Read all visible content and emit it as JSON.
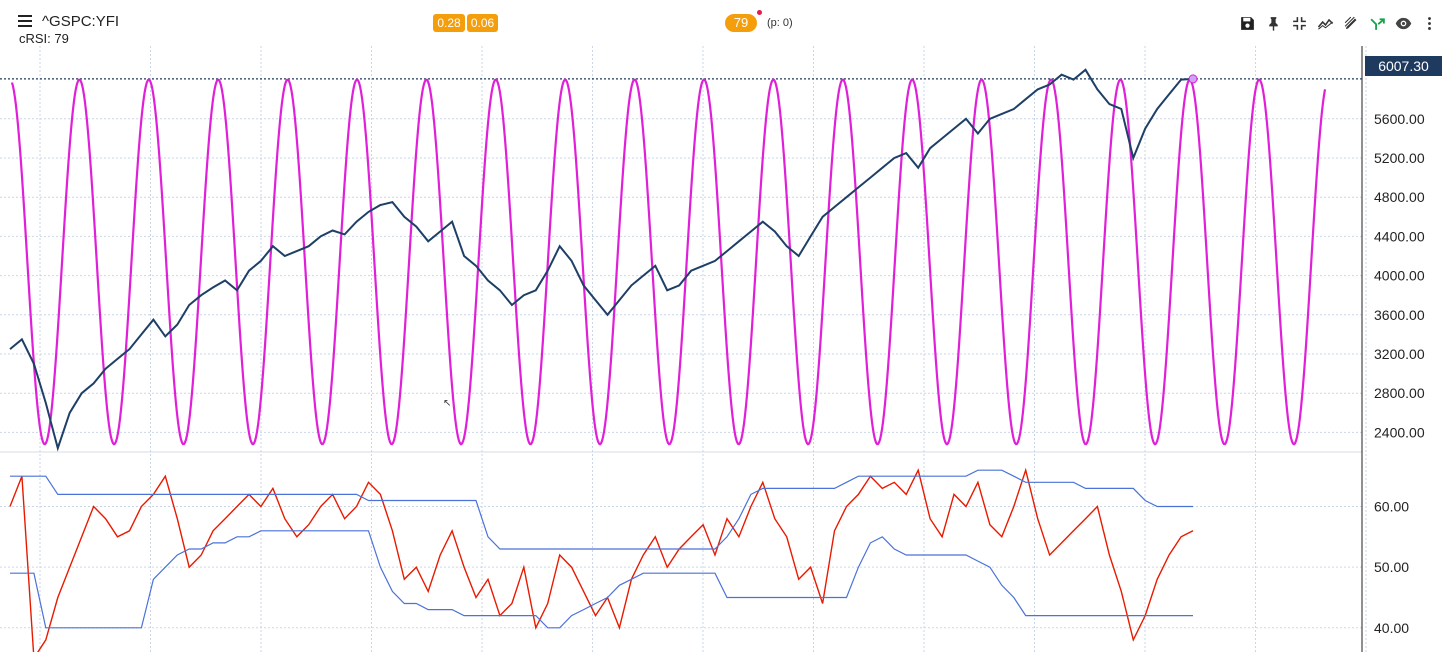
{
  "header": {
    "symbol": "^GSPC:YFI",
    "indicator_label": "cRSI: 79",
    "badge_a": "0.28",
    "badge_b": "0.06",
    "badge_c": "79",
    "p_label": "(p: 0)"
  },
  "toolbar": [
    "save-icon",
    "pin-icon",
    "compress-icon",
    "trend-icon",
    "draw-icon",
    "fork-icon",
    "eye-icon",
    "more-icon"
  ],
  "colors": {
    "price": "#1e3f66",
    "cycle": "#e020d8",
    "rsi": "#e81a00",
    "bands": "#4a72d8",
    "grid": "#c9d6e8",
    "price_tag": "#1e3a5f"
  },
  "chart_data": [
    {
      "type": "line",
      "panel": "price",
      "series": [
        {
          "values": [
            3250,
            3350,
            3100,
            2700,
            2240,
            2600,
            2800,
            2900,
            3050,
            3150,
            3250,
            3400,
            3550,
            3380,
            3500,
            3700,
            3800,
            3880,
            3950,
            3850,
            4050,
            4150,
            4300,
            4200,
            4250,
            4300,
            4400,
            4460,
            4420,
            4550,
            4650,
            4720,
            4750,
            4600,
            4500,
            4350,
            4450,
            4550,
            4200,
            4100,
            3950,
            3850,
            3700,
            3800,
            3850,
            4050,
            4300,
            4150,
            3900,
            3750,
            3600,
            3750,
            3900,
            4000,
            4100,
            3850,
            3900,
            4050,
            4100,
            4150,
            4250,
            4350,
            4450,
            4550,
            4450,
            4300,
            4200,
            4400,
            4600,
            4700,
            4800,
            4900,
            5000,
            5100,
            5200,
            5250,
            5100,
            5300,
            5400,
            5500,
            5600,
            5450,
            5600,
            5650,
            5700,
            5800,
            5900,
            5950,
            6050,
            6000,
            6100,
            5900,
            5750,
            5700,
            5200,
            5500,
            5700,
            5850,
            6000,
            6007.3
          ]
        }
      ],
      "last_value": "6007.30",
      "ylim": [
        2200,
        6200
      ],
      "y_ticks": [
        "5600.00",
        "5200.00",
        "4800.00",
        "4400.00",
        "4000.00",
        "3600.00",
        "3200.00",
        "2800.00",
        "2400.00"
      ]
    },
    {
      "type": "line",
      "panel": "cycle",
      "cycles": 19,
      "ylim": [
        2200,
        6200
      ]
    },
    {
      "type": "line",
      "panel": "rsi",
      "series": [
        {
          "values": [
            60,
            65,
            35,
            38,
            45,
            50,
            55,
            60,
            58,
            55,
            56,
            60,
            62,
            65,
            58,
            50,
            52,
            56,
            58,
            60,
            62,
            60,
            63,
            58,
            55,
            57,
            60,
            62,
            58,
            60,
            64,
            62,
            56,
            48,
            50,
            46,
            52,
            56,
            50,
            45,
            48,
            42,
            44,
            50,
            40,
            44,
            52,
            50,
            46,
            42,
            45,
            40,
            48,
            52,
            55,
            50,
            53,
            55,
            57,
            52,
            58,
            55,
            60,
            64,
            58,
            55,
            48,
            50,
            44,
            56,
            60,
            62,
            65,
            63,
            64,
            62,
            66,
            58,
            55,
            62,
            60,
            64,
            57,
            55,
            60,
            66,
            58,
            52,
            54,
            56,
            58,
            60,
            52,
            46,
            38,
            42,
            48,
            52,
            55,
            56
          ]
        },
        {
          "values": [
            65,
            65,
            65,
            65,
            62,
            62,
            62,
            62,
            62,
            62,
            62,
            62,
            62,
            62,
            62,
            62,
            62,
            62,
            62,
            62,
            62,
            62,
            62,
            62,
            62,
            62,
            62,
            62,
            62,
            62,
            61,
            61,
            61,
            61,
            61,
            61,
            61,
            61,
            61,
            61,
            55,
            53,
            53,
            53,
            53,
            53,
            53,
            53,
            53,
            53,
            53,
            53,
            53,
            53,
            53,
            53,
            53,
            53,
            53,
            53,
            55,
            58,
            62,
            63,
            63,
            63,
            63,
            63,
            63,
            63,
            64,
            65,
            65,
            65,
            65,
            65,
            65,
            65,
            65,
            65,
            65,
            66,
            66,
            66,
            65,
            64,
            64,
            64,
            64,
            64,
            63,
            63,
            63,
            63,
            63,
            61,
            60,
            60,
            60,
            60
          ]
        },
        {
          "values": [
            49,
            49,
            49,
            40,
            40,
            40,
            40,
            40,
            40,
            40,
            40,
            40,
            48,
            50,
            52,
            53,
            53,
            54,
            54,
            55,
            55,
            56,
            56,
            56,
            56,
            56,
            56,
            56,
            56,
            56,
            56,
            50,
            46,
            44,
            44,
            43,
            43,
            43,
            42,
            42,
            42,
            42,
            42,
            42,
            42,
            40,
            40,
            42,
            43,
            44,
            45,
            47,
            48,
            49,
            49,
            49,
            49,
            49,
            49,
            49,
            45,
            45,
            45,
            45,
            45,
            45,
            45,
            45,
            45,
            45,
            45,
            50,
            54,
            55,
            53,
            52,
            52,
            52,
            52,
            52,
            52,
            51,
            50,
            47,
            45,
            42,
            42,
            42,
            42,
            42,
            42,
            42,
            42,
            42,
            42,
            42,
            42,
            42,
            42,
            42
          ]
        }
      ],
      "ylim": [
        36,
        69
      ],
      "y_ticks": [
        "60.00",
        "50.00",
        "40.00"
      ]
    }
  ]
}
